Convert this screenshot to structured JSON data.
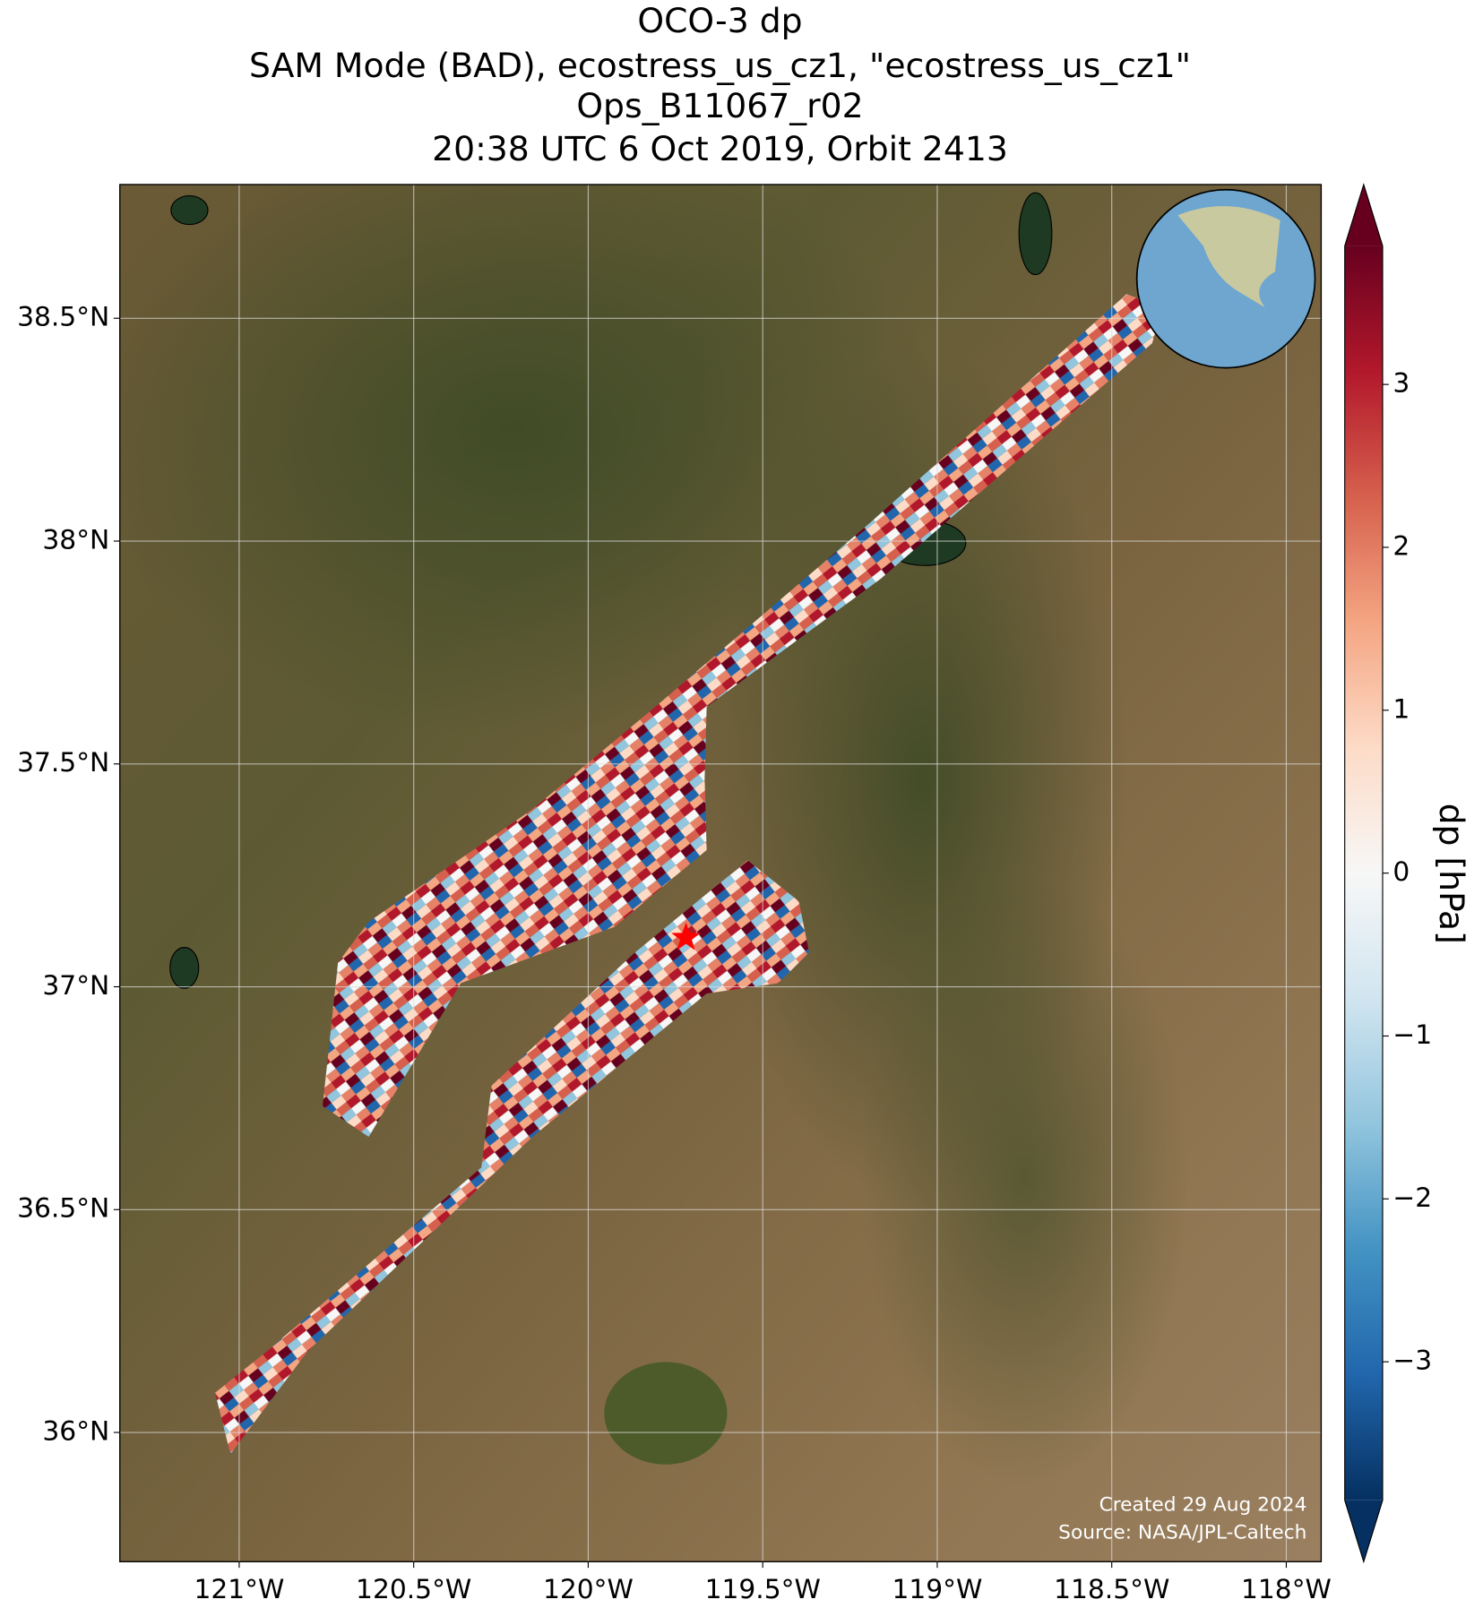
{
  "chart_data": {
    "type": "map",
    "title": "OCO-3 dp",
    "subtitle": "SAM Mode (BAD), ecostress_us_cz1, \"ecostress_us_cz1\"",
    "version": "Ops_B11067_r02",
    "time": "20:38 UTC 6 Oct 2019, Orbit 2413",
    "xlim": [
      -121.342,
      -117.9
    ],
    "ylim": [
      35.71,
      38.8
    ],
    "xticks": [
      {
        "value": -121,
        "label": "121°W"
      },
      {
        "value": -120.5,
        "label": "120.5°W"
      },
      {
        "value": -120,
        "label": "120°W"
      },
      {
        "value": -119.5,
        "label": "119.5°W"
      },
      {
        "value": -119,
        "label": "119°W"
      },
      {
        "value": -118.5,
        "label": "118.5°W"
      },
      {
        "value": -118,
        "label": "118°W"
      }
    ],
    "yticks": [
      {
        "value": 36,
        "label": "36°N"
      },
      {
        "value": 36.5,
        "label": "36.5°N"
      },
      {
        "value": 37,
        "label": "37°N"
      },
      {
        "value": 37.5,
        "label": "37.5°N"
      },
      {
        "value": 38,
        "label": "38°N"
      },
      {
        "value": 38.5,
        "label": "38.5°N"
      }
    ],
    "grid": true,
    "target": {
      "lon": -119.72,
      "lat": 37.11,
      "color": "#ff0000"
    },
    "colorbar": {
      "label": "dp [hPa]",
      "lim": [
        -3.85,
        3.85
      ],
      "colors": [
        "#053061",
        "#2166ac",
        "#4393c3",
        "#92c5de",
        "#d1e5f0",
        "#f7f7f7",
        "#fddbc7",
        "#f4a582",
        "#d6604d",
        "#b2182b",
        "#67001f"
      ],
      "ticks": [
        {
          "value": -3,
          "label": "−3"
        },
        {
          "value": -2,
          "label": "−2"
        },
        {
          "value": -1,
          "label": "−1"
        },
        0,
        1,
        2,
        3
      ]
    },
    "created": "Created 29 Aug 2024",
    "source": "Source: NASA/JPL-Caltech"
  }
}
